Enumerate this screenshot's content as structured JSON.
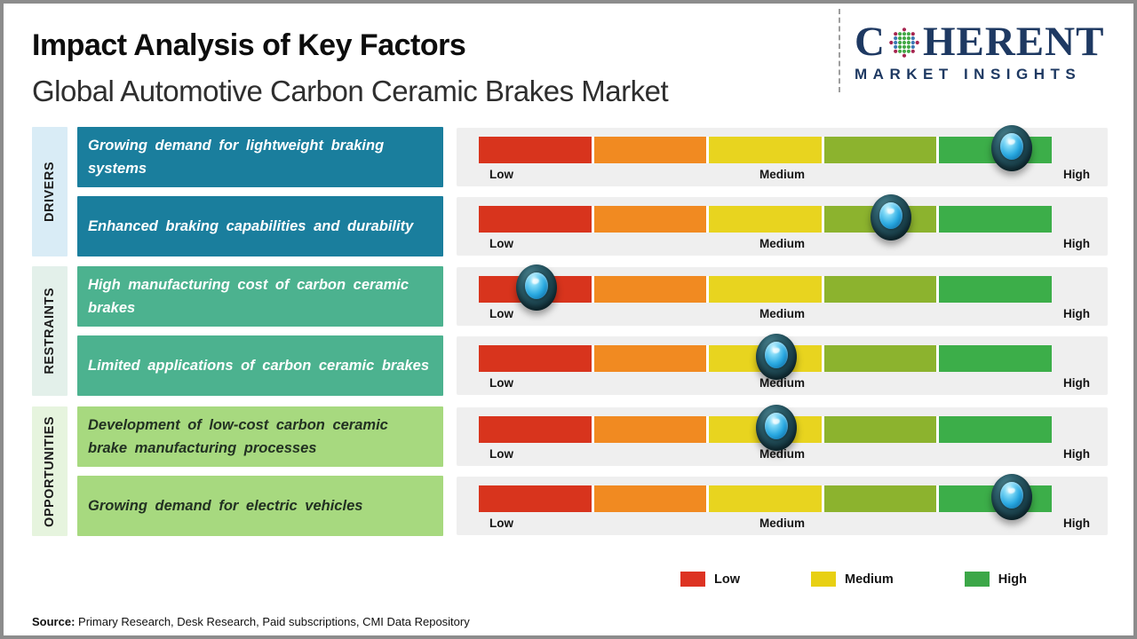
{
  "header": {
    "title": "Impact Analysis of Key Factors",
    "subtitle": "Global Automotive Carbon Ceramic Brakes Market"
  },
  "logo": {
    "letter_first": "C",
    "letters_rest": "HERENT",
    "line2": "MARKET INSIGHTS",
    "text_color": "#1E3962",
    "globe_colors": {
      "green": "#44A947",
      "blue": "#3D7AB5",
      "crimson": "#A62550"
    }
  },
  "scale": {
    "segment_colors": [
      "#D8341D",
      "#F18A21",
      "#E8D41F",
      "#8CB32E",
      "#3CAE49"
    ],
    "labels": {
      "low": "Low",
      "medium": "Medium",
      "high": "High"
    }
  },
  "groups": [
    {
      "label": "DRIVERS",
      "strip_color": "#D9ECF6",
      "box_color": "#1A7E9D",
      "text_color": "#FFFFFF",
      "rows": [
        {
          "factor": "Growing demand for lightweight braking systems",
          "impact_percent": 93
        },
        {
          "factor": "Enhanced braking capabilities and durability",
          "impact_percent": 72
        }
      ]
    },
    {
      "label": "RESTRAINTS",
      "strip_color": "#E3F0EA",
      "box_color": "#4CB28F",
      "text_color": "#FFFFFF",
      "rows": [
        {
          "factor": "High manufacturing cost of carbon ceramic brakes",
          "impact_percent": 10
        },
        {
          "factor": "Limited applications of carbon ceramic brakes",
          "impact_percent": 52
        }
      ]
    },
    {
      "label": "OPPORTUNITIES",
      "strip_color": "#E6F4DE",
      "box_color": "#A7D97F",
      "text_color": "#223122",
      "rows": [
        {
          "factor": "Development of low-cost carbon ceramic brake manufacturing processes",
          "impact_percent": 52
        },
        {
          "factor": "Growing demand for electric vehicles",
          "impact_percent": 93
        }
      ]
    }
  ],
  "legend": [
    {
      "label": "Low",
      "color": "#DD3322"
    },
    {
      "label": "Medium",
      "color": "#E8D013"
    },
    {
      "label": "High",
      "color": "#3CA748"
    }
  ],
  "source": {
    "prefix": "Source:",
    "text": " Primary Research, Desk Research, Paid subscriptions, CMI Data Repository"
  },
  "chart_data": {
    "type": "table",
    "title": "Impact Analysis of Key Factors",
    "subtitle": "Global Automotive Carbon Ceramic Brakes Market",
    "scale": {
      "axis_labels": [
        "Low",
        "Medium",
        "High"
      ],
      "range": [
        0,
        100
      ]
    },
    "rows": [
      {
        "category": "Drivers",
        "factor": "Growing demand for lightweight braking systems",
        "impact": "High",
        "impact_percent": 93
      },
      {
        "category": "Drivers",
        "factor": "Enhanced braking capabilities and durability",
        "impact": "Medium-High",
        "impact_percent": 72
      },
      {
        "category": "Restraints",
        "factor": "High manufacturing cost of carbon ceramic brakes",
        "impact": "Low",
        "impact_percent": 10
      },
      {
        "category": "Restraints",
        "factor": "Limited applications of carbon ceramic brakes",
        "impact": "Medium",
        "impact_percent": 52
      },
      {
        "category": "Opportunities",
        "factor": "Development of low-cost carbon ceramic brake manufacturing processes",
        "impact": "Medium",
        "impact_percent": 52
      },
      {
        "category": "Opportunities",
        "factor": "Growing demand for electric vehicles",
        "impact": "High",
        "impact_percent": 93
      }
    ],
    "legend": [
      "Low",
      "Medium",
      "High"
    ],
    "grid": false,
    "legend_position": "bottom-right"
  }
}
